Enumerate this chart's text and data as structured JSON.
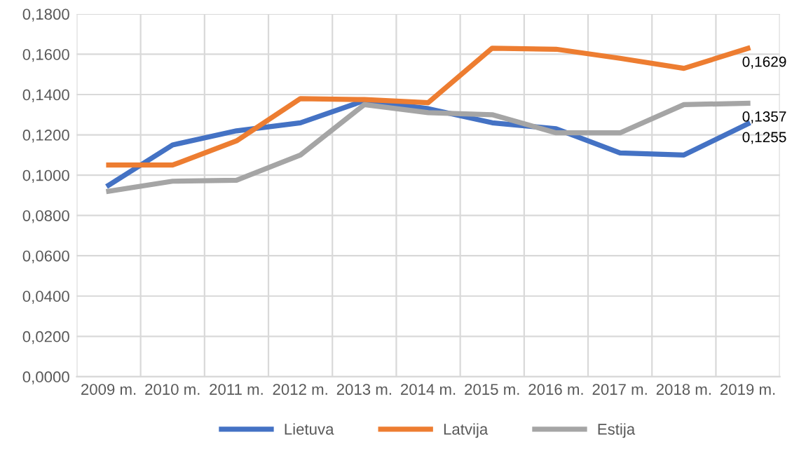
{
  "chart_data": {
    "type": "line",
    "categories": [
      "2009 m.",
      "2010 m.",
      "2011 m.",
      "2012 m.",
      "2013 m.",
      "2014 m.",
      "2015 m.",
      "2016 m.",
      "2017 m.",
      "2018 m.",
      "2019 m."
    ],
    "series": [
      {
        "name": "Lietuva",
        "color": "#4472c4",
        "values": [
          0.095,
          0.115,
          0.122,
          0.126,
          0.137,
          0.133,
          0.126,
          0.123,
          0.111,
          0.11,
          0.1255
        ],
        "value_labels": [
          null,
          null,
          null,
          null,
          null,
          null,
          null,
          null,
          null,
          null,
          "0,1255"
        ]
      },
      {
        "name": "Latvija",
        "color": "#ed7d31",
        "values": [
          0.105,
          0.105,
          0.117,
          0.138,
          0.1375,
          0.136,
          0.163,
          0.1625,
          0.158,
          0.153,
          0.1629
        ],
        "value_labels": [
          null,
          null,
          null,
          null,
          null,
          null,
          null,
          null,
          null,
          null,
          "0,1629"
        ]
      },
      {
        "name": "Estija",
        "color": "#a5a5a5",
        "values": [
          0.092,
          0.097,
          0.0975,
          0.11,
          0.135,
          0.131,
          0.13,
          0.121,
          0.121,
          0.135,
          0.1357
        ],
        "value_labels": [
          null,
          null,
          null,
          null,
          null,
          null,
          null,
          null,
          null,
          null,
          "0,1357"
        ]
      }
    ],
    "ylim": [
      0,
      0.18
    ],
    "yticks": [
      {
        "value": 0,
        "label": "0,0000"
      },
      {
        "value": 0.02,
        "label": "0,0200"
      },
      {
        "value": 0.04,
        "label": "0,0400"
      },
      {
        "value": 0.06,
        "label": "0,0600"
      },
      {
        "value": 0.08,
        "label": "0,0800"
      },
      {
        "value": 0.1,
        "label": "0,1000"
      },
      {
        "value": 0.12,
        "label": "0,1200"
      },
      {
        "value": 0.14,
        "label": "0,1400"
      },
      {
        "value": 0.16,
        "label": "0,1600"
      },
      {
        "value": 0.18,
        "label": "0,1800"
      }
    ],
    "grid": true,
    "legend": "bottom",
    "marker": "none",
    "line_style": "solid"
  }
}
